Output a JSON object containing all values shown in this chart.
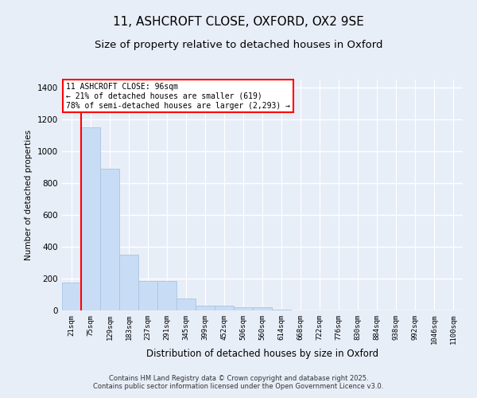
{
  "title1": "11, ASHCROFT CLOSE, OXFORD, OX2 9SE",
  "title2": "Size of property relative to detached houses in Oxford",
  "xlabel": "Distribution of detached houses by size in Oxford",
  "ylabel": "Number of detached properties",
  "bar_color": "#c9dcf5",
  "bar_edgecolor": "#a8c4e0",
  "categories": [
    "21sqm",
    "75sqm",
    "129sqm",
    "183sqm",
    "237sqm",
    "291sqm",
    "345sqm",
    "399sqm",
    "452sqm",
    "506sqm",
    "560sqm",
    "614sqm",
    "668sqm",
    "722sqm",
    "776sqm",
    "830sqm",
    "884sqm",
    "938sqm",
    "992sqm",
    "1046sqm",
    "1100sqm"
  ],
  "values": [
    175,
    1150,
    890,
    350,
    185,
    185,
    75,
    32,
    30,
    22,
    20,
    5,
    0,
    0,
    0,
    0,
    0,
    0,
    0,
    0,
    0
  ],
  "ylim": [
    0,
    1450
  ],
  "yticks": [
    0,
    200,
    400,
    600,
    800,
    1000,
    1200,
    1400
  ],
  "red_line_x": 0.5,
  "annotation_title": "11 ASHCROFT CLOSE: 96sqm",
  "annotation_line2": "← 21% of detached houses are smaller (619)",
  "annotation_line3": "78% of semi-detached houses are larger (2,293) →",
  "footnote1": "Contains HM Land Registry data © Crown copyright and database right 2025.",
  "footnote2": "Contains public sector information licensed under the Open Government Licence v3.0.",
  "bg_color": "#e8eef8",
  "grid_color": "#ffffff",
  "title_fontsize": 11,
  "subtitle_fontsize": 9.5
}
